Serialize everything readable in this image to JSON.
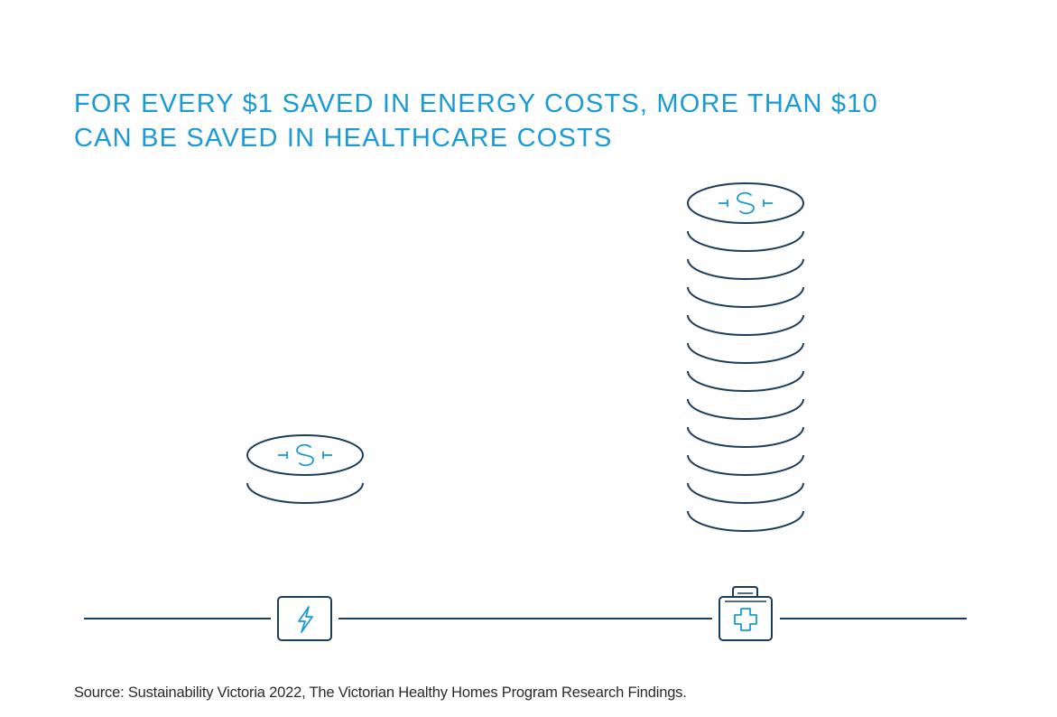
{
  "headline": {
    "line1": "FOR EVERY $1 SAVED IN ENERGY COSTS, MORE THAN $10",
    "line2": "CAN BE SAVED IN HEALTHCARE COSTS"
  },
  "comparison": [
    {
      "category": "energy",
      "coins": 2,
      "icon": "lightning-bolt-icon"
    },
    {
      "category": "healthcare",
      "coins": 12,
      "icon": "first-aid-kit-icon"
    }
  ],
  "source": "Source: Sustainability Victoria 2022, The Victorian Healthy Homes Program Research Findings.",
  "colors": {
    "accent": "#1a9ad6",
    "line": "#1b3d5c",
    "text": "#2a2a2a"
  }
}
